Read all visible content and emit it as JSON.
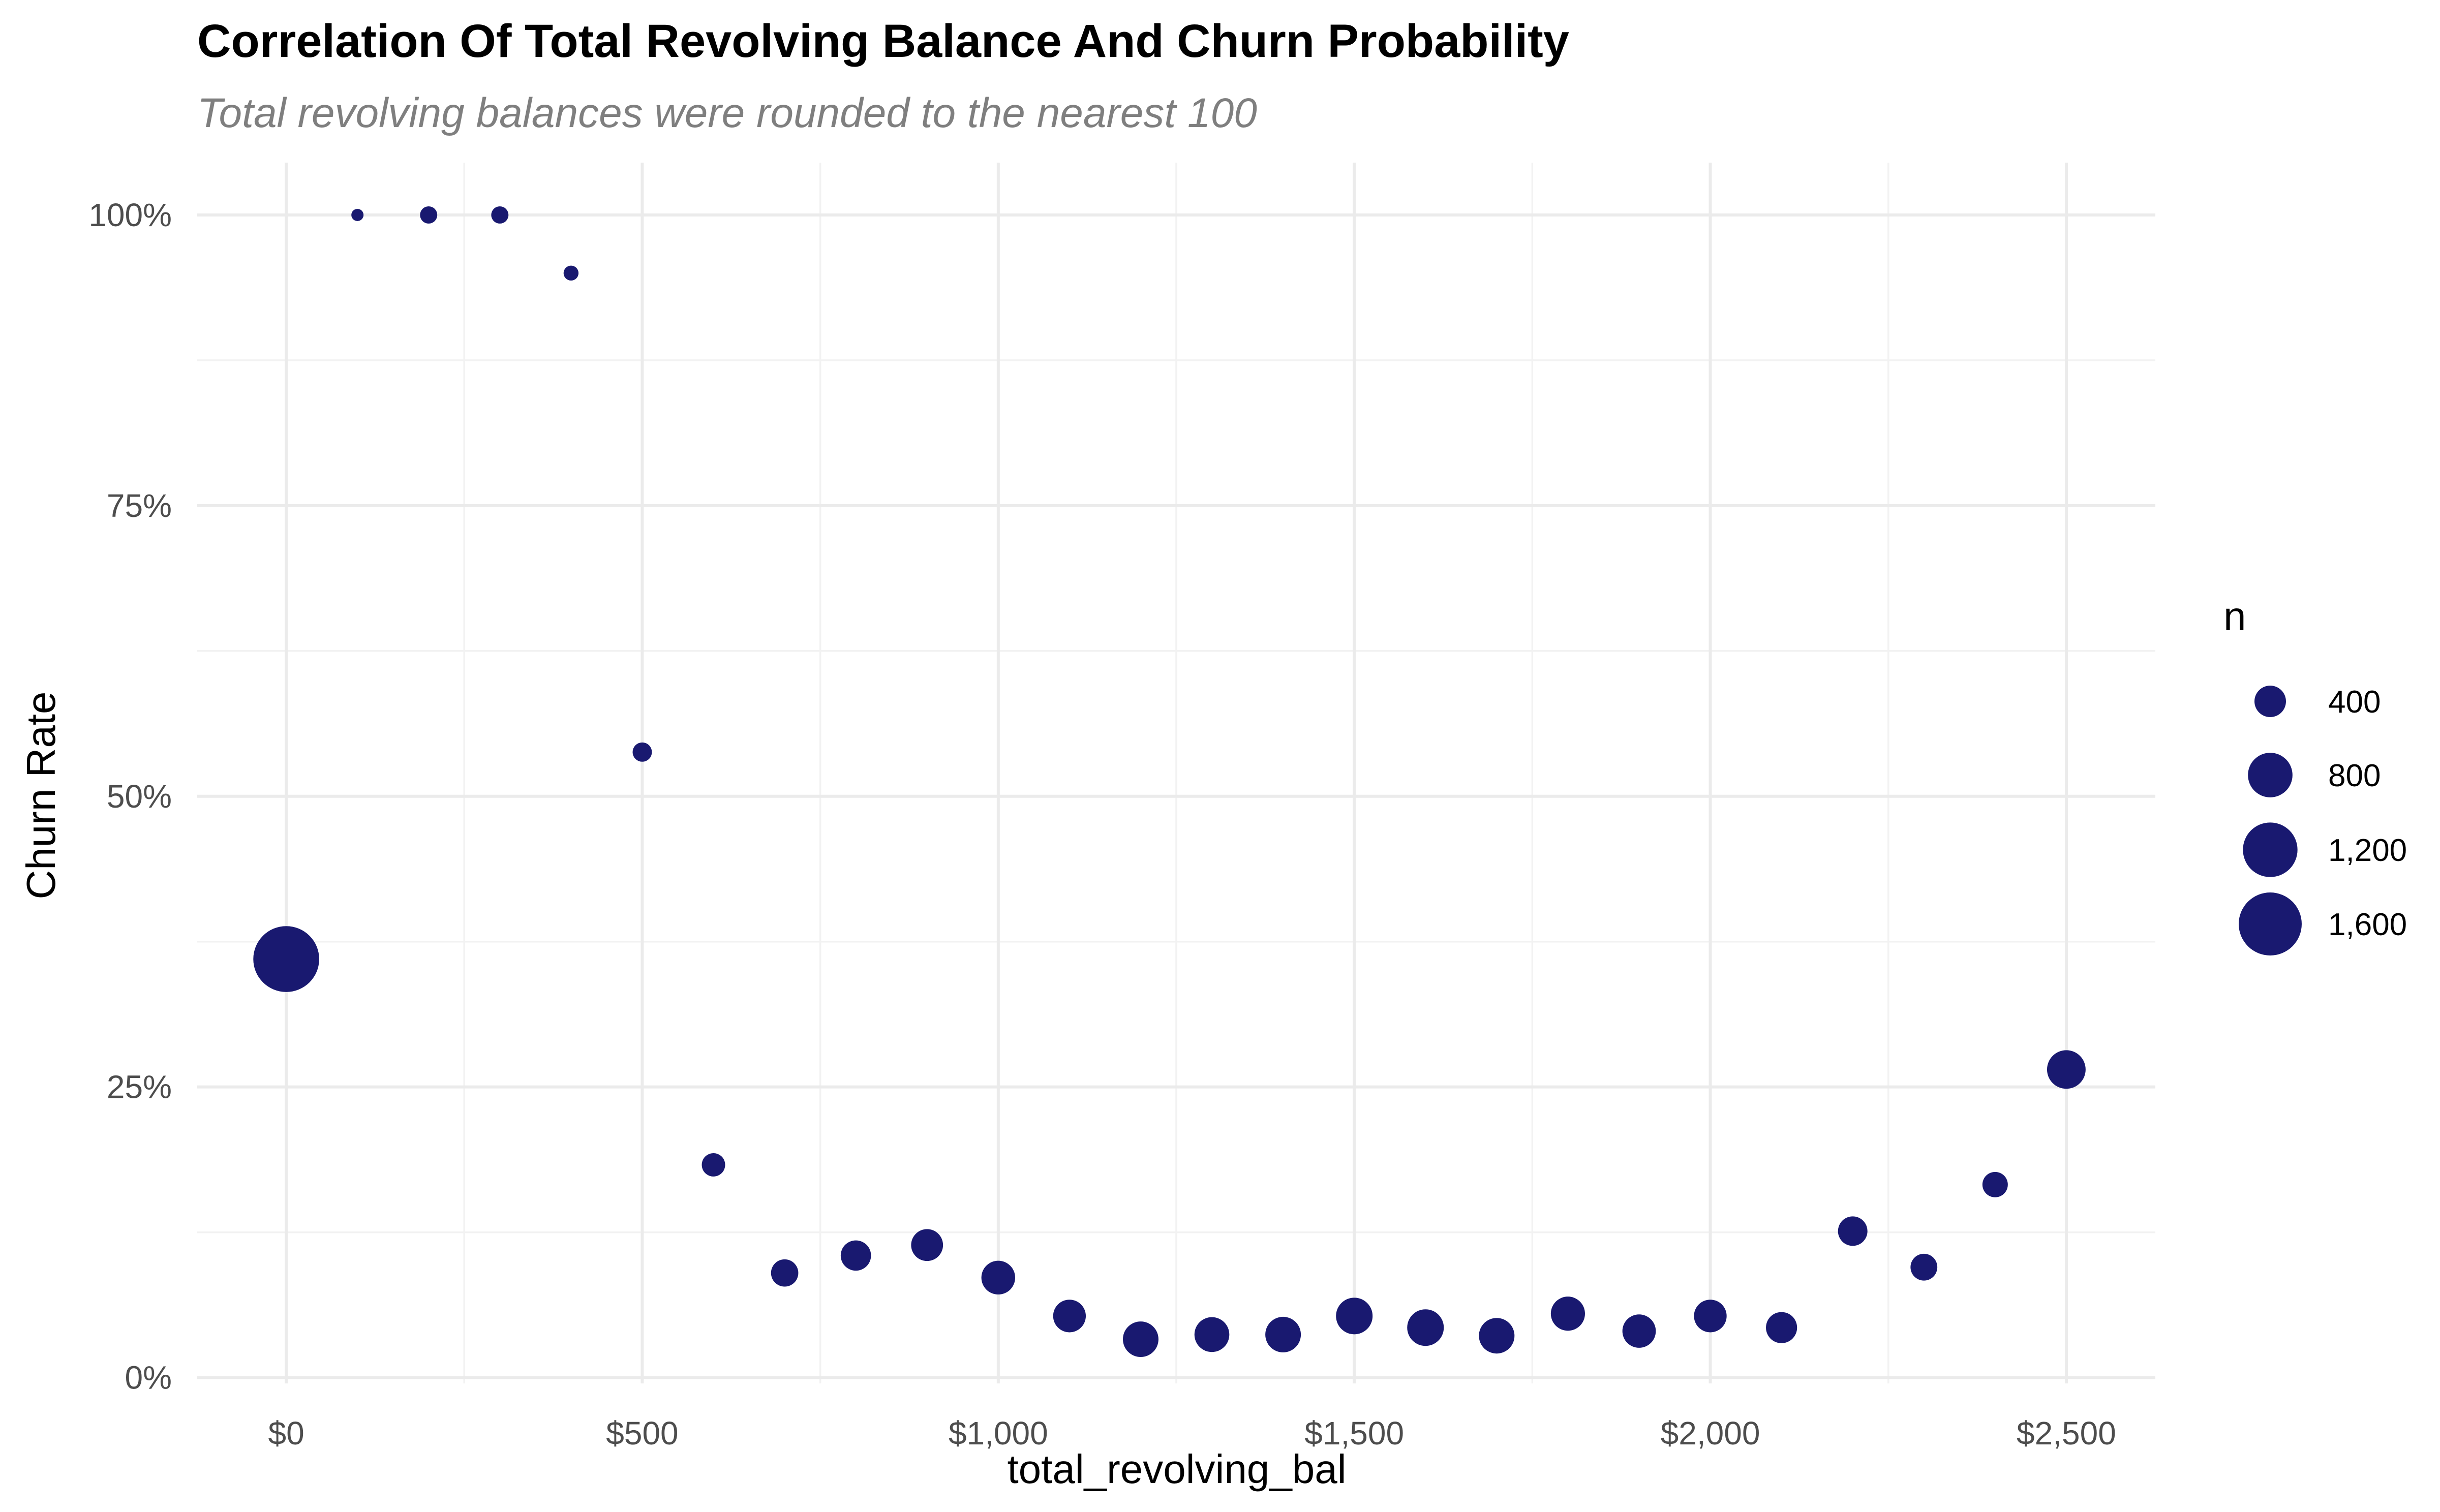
{
  "chart_data": {
    "type": "scatter",
    "title": "Correlation Of Total Revolving Balance And Churn Probability",
    "subtitle": "Total revolving balances were rounded to the nearest 100",
    "xlabel": "total_revolving_bal",
    "ylabel": "Churn Rate",
    "xlim": [
      -125,
      2625
    ],
    "ylim": [
      -0.005,
      1.045
    ],
    "x_ticks": [
      0,
      500,
      1000,
      1500,
      2000,
      2500
    ],
    "x_tick_labels": [
      "$0",
      "$500",
      "$1,000",
      "$1,500",
      "$2,000",
      "$2,500"
    ],
    "y_ticks": [
      0,
      0.25,
      0.5,
      0.75,
      1.0
    ],
    "y_tick_labels": [
      "0%",
      "25%",
      "50%",
      "75%",
      "100%"
    ],
    "grid": true,
    "legend_position": "right",
    "size_legend": {
      "title": "n",
      "values": [
        400,
        800,
        1200,
        1600
      ],
      "labels": [
        "400",
        "800",
        "1,200",
        "1,600"
      ]
    },
    "point_color": "#191970",
    "series": [
      {
        "x": [
          0,
          100,
          200,
          300,
          400,
          500,
          600,
          700,
          800,
          900,
          1000,
          1100,
          1200,
          1300,
          1400,
          1500,
          1600,
          1700,
          1800,
          1900,
          2000,
          2100,
          2200,
          2300,
          2400,
          2500
        ],
        "y": [
          0.36,
          1.0,
          1.0,
          1.0,
          0.95,
          0.538,
          0.183,
          0.09,
          0.105,
          0.114,
          0.086,
          0.053,
          0.033,
          0.037,
          0.037,
          0.053,
          0.043,
          0.036,
          0.055,
          0.04,
          0.053,
          0.043,
          0.126,
          0.095,
          0.166,
          0.265
        ],
        "n": [
          1750,
          60,
          120,
          120,
          90,
          150,
          220,
          300,
          370,
          410,
          460,
          430,
          510,
          490,
          510,
          540,
          540,
          510,
          470,
          450,
          430,
          390,
          350,
          290,
          260,
          600
        ]
      }
    ]
  }
}
